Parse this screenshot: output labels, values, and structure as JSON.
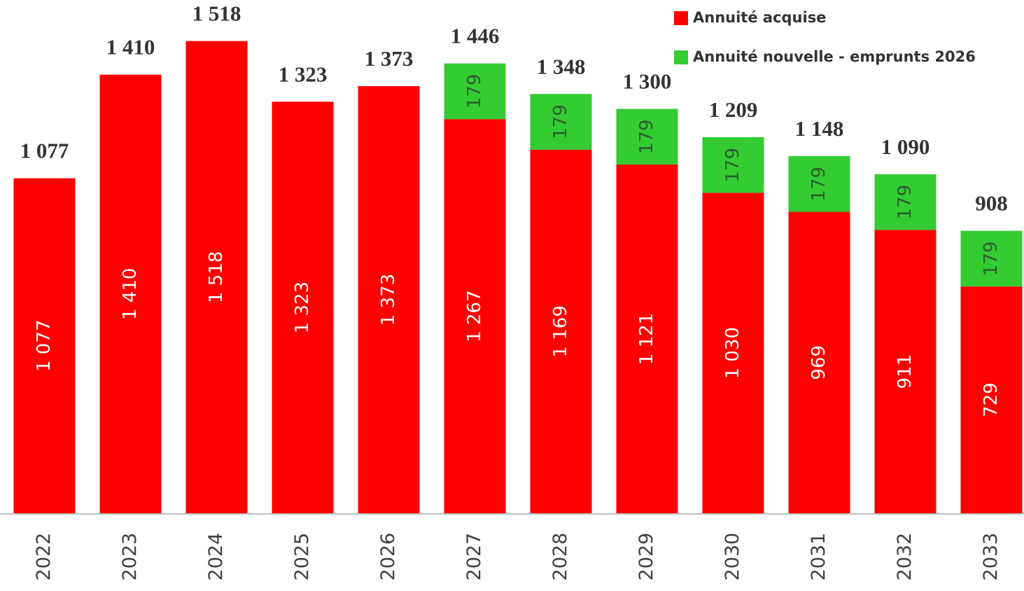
{
  "chart_data": {
    "type": "stacked_bar",
    "categories": [
      "2022",
      "2023",
      "2024",
      "2025",
      "2026",
      "2027",
      "2028",
      "2029",
      "2030",
      "2031",
      "2032",
      "2033"
    ],
    "series": [
      {
        "name": "Annuité acquise",
        "color": "#ff0000",
        "values": [
          1077,
          1410,
          1518,
          1323,
          1373,
          1267,
          1169,
          1121,
          1030,
          969,
          911,
          729
        ],
        "value_labels": [
          "1 077",
          "1 410",
          "1 518",
          "1 323",
          "1 373",
          "1 267",
          "1 169",
          "1 121",
          "1 030",
          "969",
          "911",
          "729"
        ]
      },
      {
        "name": "Annuité nouvelle - emprunts 2026",
        "color": "#33cc33",
        "values": [
          null,
          null,
          null,
          null,
          null,
          179,
          179,
          179,
          179,
          179,
          179,
          179
        ]
      }
    ],
    "totals": [
      1077,
      1410,
      1518,
      1323,
      1373,
      1446,
      1348,
      1300,
      1209,
      1148,
      1090,
      908
    ],
    "total_labels": [
      "1 077",
      "1 410",
      "1 518",
      "1 323",
      "1 373",
      "1 446",
      "1 348",
      "1 300",
      "1 209",
      "1 148",
      "1 090",
      "908"
    ],
    "ylim": [
      0,
      1650
    ],
    "legend": "top-right"
  }
}
